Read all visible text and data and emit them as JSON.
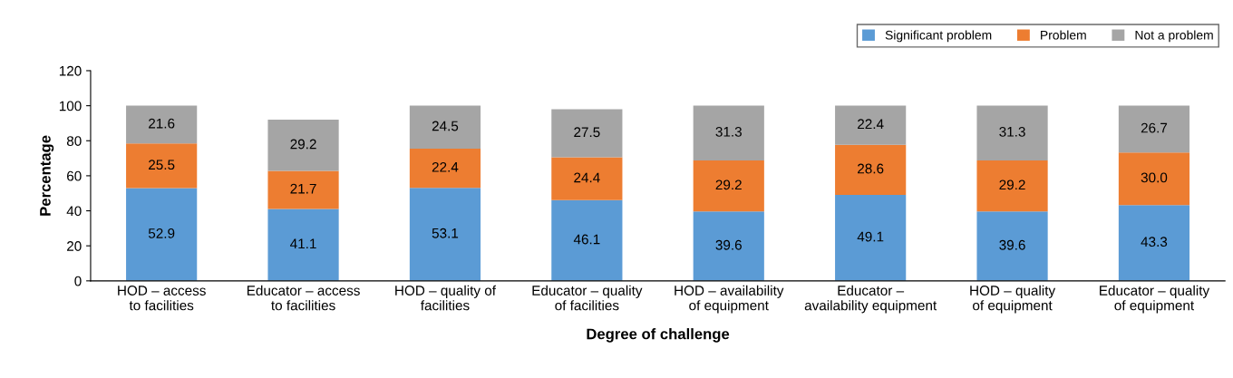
{
  "chart_data": {
    "type": "bar",
    "stacked": true,
    "xlabel": "Degree of challenge",
    "ylabel": "Percentage",
    "categories": [
      "HOD – access\nto facilities",
      "Educator – access\nto facilities",
      "HOD – quality of\nfacilities",
      "Educator – quality\nof facilities",
      "HOD – availability\nof equipment",
      "Educator –\navailability equipment",
      "HOD – quality\nof equipment",
      "Educator – quality\nof equipment"
    ],
    "series": [
      {
        "name": "Significant problem",
        "color": "#5b9bd5",
        "values": [
          52.9,
          41.1,
          53.1,
          46.1,
          39.6,
          49.1,
          39.6,
          43.3
        ],
        "value_labels": [
          "52.9",
          "41.1",
          "53.1",
          "46.1",
          "39.6",
          "49.1",
          "39.6",
          "43.3"
        ]
      },
      {
        "name": "Problem",
        "color": "#ed7d31",
        "values": [
          25.5,
          21.7,
          22.4,
          24.4,
          29.2,
          28.6,
          29.2,
          30.0
        ],
        "value_labels": [
          "25.5",
          "21.7",
          "22.4",
          "24.4",
          "29.2",
          "28.6",
          "29.2",
          "30.0"
        ]
      },
      {
        "name": "Not a problem",
        "color": "#a5a5a5",
        "values": [
          21.6,
          29.2,
          24.5,
          27.5,
          31.3,
          22.4,
          31.3,
          26.7
        ],
        "value_labels": [
          "21.6",
          "29.2",
          "24.5",
          "27.5",
          "31.3",
          "22.4",
          "31.3",
          "26.7"
        ]
      }
    ],
    "ylim": [
      0,
      120
    ],
    "yticks": [
      0,
      20,
      40,
      60,
      80,
      100,
      120
    ],
    "grid": false,
    "legend": "top right"
  }
}
